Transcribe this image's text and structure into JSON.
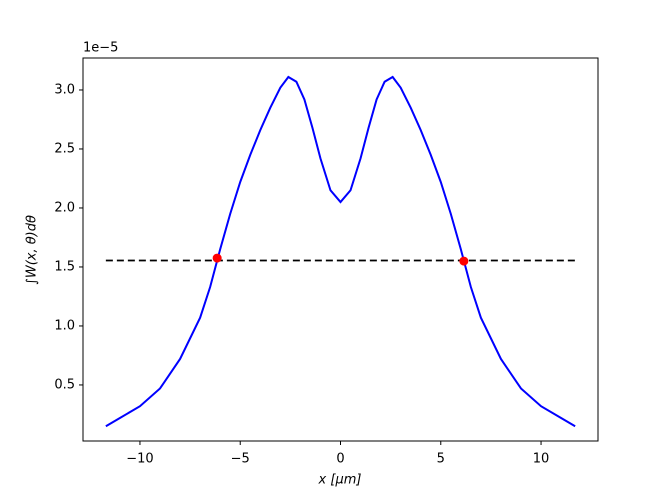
{
  "chart_data": {
    "type": "line",
    "x_label": "x  [μm]",
    "y_label": "∫W(x, θ)dθ",
    "y_offset_label": "1e−5",
    "xlim": [
      -12.84,
      12.84
    ],
    "ylim": [
      0.025,
      3.271
    ],
    "xticks": [
      {
        "value": -10,
        "label": "−10"
      },
      {
        "value": -5,
        "label": "−5"
      },
      0,
      5,
      10
    ],
    "yticks": [
      0.5,
      {
        "value": 1,
        "label": "1.0"
      },
      1.5,
      {
        "value": 2,
        "label": "2.0"
      },
      2.5,
      {
        "value": 3,
        "label": "3.0"
      }
    ],
    "series": [
      {
        "color": "#0000ff",
        "style": "solid",
        "x": [
          -11.7,
          -11,
          -10,
          -9,
          -8,
          -7,
          -6.5,
          -6,
          -5.5,
          -5,
          -4.5,
          -4,
          -3.5,
          -3,
          -2.6,
          -2.2,
          -1.8,
          -1.4,
          -1,
          -0.5,
          0,
          0.5,
          1,
          1.4,
          1.8,
          2.2,
          2.6,
          3,
          3.5,
          4,
          4.5,
          5,
          5.5,
          6,
          6.5,
          7,
          8,
          9,
          10,
          11,
          11.7
        ],
        "values": [
          0.15,
          0.22,
          0.32,
          0.47,
          0.72,
          1.07,
          1.33,
          1.65,
          1.95,
          2.22,
          2.45,
          2.66,
          2.85,
          3.02,
          3.11,
          3.07,
          2.92,
          2.68,
          2.42,
          2.15,
          2.05,
          2.15,
          2.42,
          2.68,
          2.92,
          3.07,
          3.11,
          3.02,
          2.85,
          2.66,
          2.45,
          2.22,
          1.95,
          1.65,
          1.33,
          1.07,
          0.72,
          0.47,
          0.32,
          0.22,
          0.15
        ]
      },
      {
        "color": "#000000",
        "style": "dashed",
        "x": [
          -11.7,
          11.7
        ],
        "values": [
          1.555,
          1.555
        ]
      },
      {
        "color": "#ff0000",
        "style": "points",
        "x": [
          -6.15,
          6.15
        ],
        "values": [
          1.575,
          1.55
        ]
      }
    ]
  }
}
